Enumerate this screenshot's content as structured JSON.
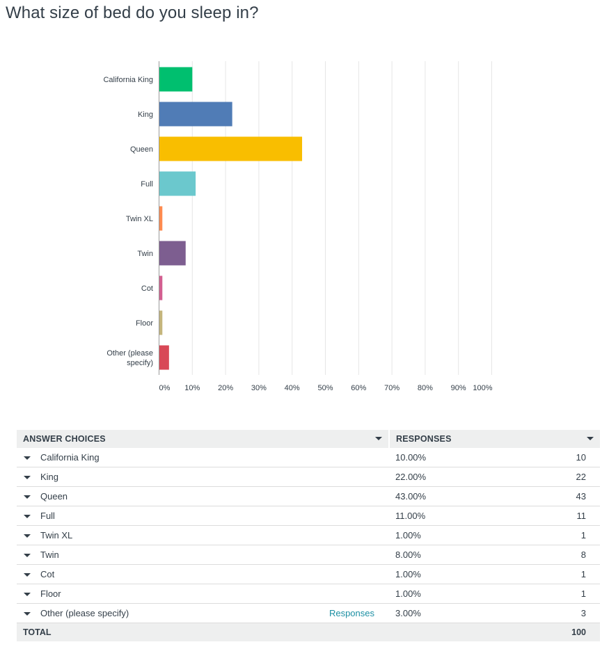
{
  "question": "What size of bed do you sleep in?",
  "chart_data": {
    "type": "bar",
    "orientation": "horizontal",
    "categories": [
      "California King",
      "King",
      "Queen",
      "Full",
      "Twin XL",
      "Twin",
      "Cot",
      "Floor",
      "Other (please specify)"
    ],
    "category_lines": [
      [
        "California King"
      ],
      [
        "King"
      ],
      [
        "Queen"
      ],
      [
        "Full"
      ],
      [
        "Twin XL"
      ],
      [
        "Twin"
      ],
      [
        "Cot"
      ],
      [
        "Floor"
      ],
      [
        "Other (please",
        "specify)"
      ]
    ],
    "values": [
      10,
      22,
      43,
      11,
      1,
      8,
      1,
      1,
      3
    ],
    "colors": [
      "#00bf6f",
      "#507cb6",
      "#f9be00",
      "#6bc8cd",
      "#ff8b4f",
      "#7d5e90",
      "#d25f90",
      "#c4b57c",
      "#d84856"
    ],
    "xlim": [
      0,
      100
    ],
    "ticks": [
      0,
      10,
      20,
      30,
      40,
      50,
      60,
      70,
      80,
      90,
      100
    ],
    "tick_labels": [
      "0%",
      "10%",
      "20%",
      "30%",
      "40%",
      "50%",
      "60%",
      "70%",
      "80%",
      "90%",
      "100%"
    ],
    "grid": true
  },
  "table": {
    "headers": {
      "choices": "ANSWER CHOICES",
      "responses": "RESPONSES"
    },
    "rows": [
      {
        "label": "California King",
        "percent": "10.00%",
        "count": "10"
      },
      {
        "label": "King",
        "percent": "22.00%",
        "count": "22"
      },
      {
        "label": "Queen",
        "percent": "43.00%",
        "count": "43"
      },
      {
        "label": "Full",
        "percent": "11.00%",
        "count": "11"
      },
      {
        "label": "Twin XL",
        "percent": "1.00%",
        "count": "1"
      },
      {
        "label": "Twin",
        "percent": "8.00%",
        "count": "8"
      },
      {
        "label": "Cot",
        "percent": "1.00%",
        "count": "1"
      },
      {
        "label": "Floor",
        "percent": "1.00%",
        "count": "1"
      },
      {
        "label": "Other (please specify)",
        "percent": "3.00%",
        "count": "3",
        "link": "Responses"
      }
    ],
    "total": {
      "label": "TOTAL",
      "count": "100"
    }
  }
}
